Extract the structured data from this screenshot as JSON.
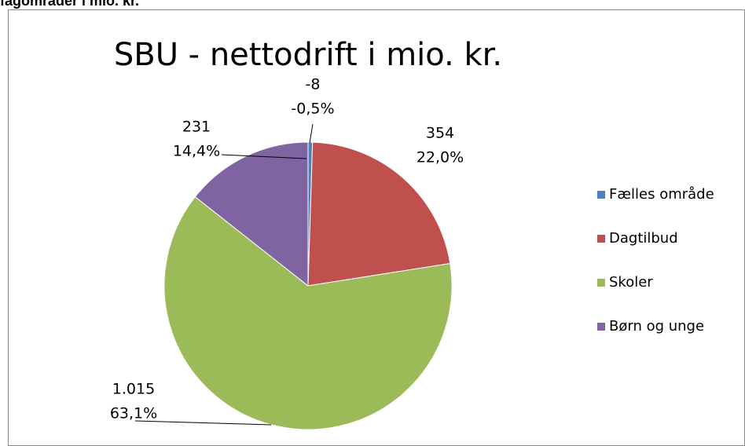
{
  "header": "fagområder i mio. kr.",
  "chart_data": {
    "type": "pie",
    "title": "SBU - nettodrift i mio. kr.",
    "categories": [
      "Fælles område",
      "Dagtilbud",
      "Skoler",
      "Børn og unge"
    ],
    "values": [
      -8,
      354,
      1015,
      231
    ],
    "value_labels": [
      "-8",
      "354",
      "1.015",
      "231"
    ],
    "percents": [
      -0.5,
      22.0,
      63.1,
      14.4
    ],
    "percent_labels": [
      "-0,5%",
      "22,0%",
      "63,1%",
      "14,4%"
    ],
    "colors": [
      "#4f81bd",
      "#c0504d",
      "#9bbb59",
      "#8064a2"
    ],
    "legend": "right"
  }
}
